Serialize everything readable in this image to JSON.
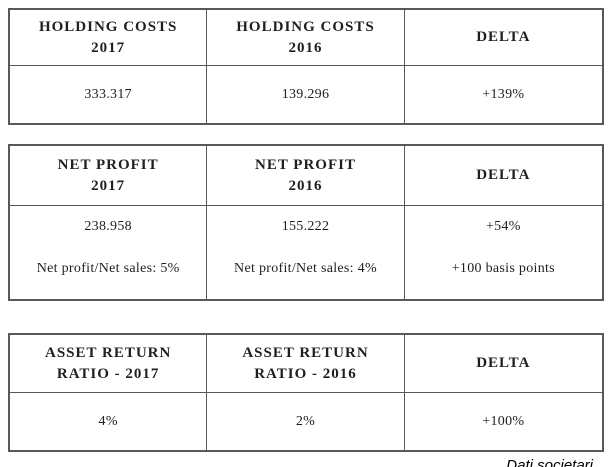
{
  "page": {
    "background": "#ffffff",
    "border_color": "#595959",
    "text_color": "#1f1f1f"
  },
  "tables": [
    {
      "name": "holding-costs",
      "columns": [
        {
          "header_line1": "HOLDING COSTS",
          "header_line2": "2017",
          "value": "333.317"
        },
        {
          "header_line1": "HOLDING COSTS",
          "header_line2": "2016",
          "value": "139.296"
        },
        {
          "header_line1": "DELTA",
          "header_line2": "",
          "value": "+139%"
        }
      ]
    },
    {
      "name": "net-profit",
      "columns": [
        {
          "header_line1": "NET PROFIT",
          "header_line2": "2017",
          "value": "238.958",
          "note": "Net profit/Net sales: 5%"
        },
        {
          "header_line1": "NET PROFIT",
          "header_line2": "2016",
          "value": "155.222",
          "note": "Net profit/Net sales: 4%"
        },
        {
          "header_line1": "DELTA",
          "header_line2": "",
          "value": "+54%",
          "note": "+100 basis points"
        }
      ]
    },
    {
      "name": "asset-return-ratio",
      "columns": [
        {
          "header_line1": "ASSET RETURN",
          "header_line2": "RATIO - 2017",
          "value": "4%"
        },
        {
          "header_line1": "ASSET RETURN",
          "header_line2": "RATIO - 2016",
          "value": "2%"
        },
        {
          "header_line1": "DELTA",
          "header_line2": "",
          "value": "+100%"
        }
      ]
    }
  ],
  "footer": {
    "caption": "Dati societari"
  }
}
